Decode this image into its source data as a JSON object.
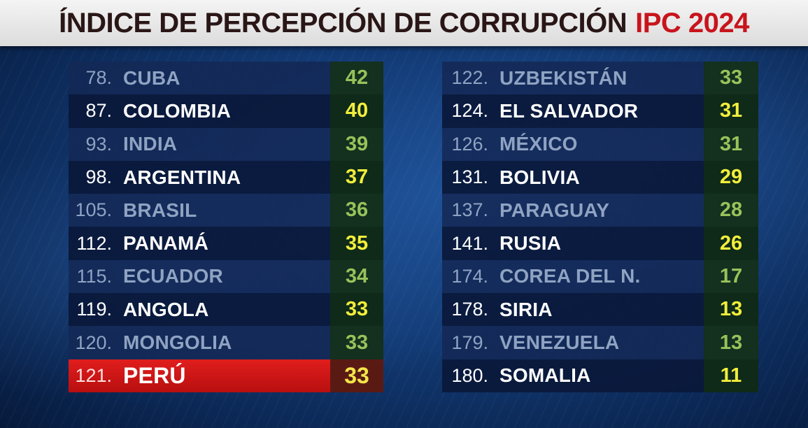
{
  "header": {
    "title_main": "ÍNDICE DE PERCEPCIÓN DE CORRUPCIÓN",
    "title_accent": "IPC 2024"
  },
  "colors": {
    "title_accent": "#c8141c",
    "highlight_row": "#e11d1d",
    "score_bright": "#f1ee3c",
    "score_dim": "#96c35a"
  },
  "left_table": [
    {
      "rank": "78.",
      "country": "CUBA",
      "score": "42",
      "style": "dim"
    },
    {
      "rank": "87.",
      "country": "COLOMBIA",
      "score": "40",
      "style": "bright"
    },
    {
      "rank": "93.",
      "country": "INDIA",
      "score": "39",
      "style": "dim"
    },
    {
      "rank": "98.",
      "country": "ARGENTINA",
      "score": "37",
      "style": "bright"
    },
    {
      "rank": "105.",
      "country": "BRASIL",
      "score": "36",
      "style": "dim"
    },
    {
      "rank": "112.",
      "country": "PANAMÁ",
      "score": "35",
      "style": "bright"
    },
    {
      "rank": "115.",
      "country": "ECUADOR",
      "score": "34",
      "style": "dim"
    },
    {
      "rank": "119.",
      "country": "ANGOLA",
      "score": "33",
      "style": "bright"
    },
    {
      "rank": "120.",
      "country": "MONGOLIA",
      "score": "33",
      "style": "dim"
    },
    {
      "rank": "121.",
      "country": "PERÚ",
      "score": "33",
      "style": "highlight"
    }
  ],
  "right_table": [
    {
      "rank": "122.",
      "country": "UZBEKISTÁN",
      "score": "33",
      "style": "dim"
    },
    {
      "rank": "124.",
      "country": "EL SALVADOR",
      "score": "31",
      "style": "bright"
    },
    {
      "rank": "126.",
      "country": "MÉXICO",
      "score": "31",
      "style": "dim"
    },
    {
      "rank": "131.",
      "country": "BOLIVIA",
      "score": "29",
      "style": "bright"
    },
    {
      "rank": "137.",
      "country": "PARAGUAY",
      "score": "28",
      "style": "dim"
    },
    {
      "rank": "141.",
      "country": "RUSIA",
      "score": "26",
      "style": "bright"
    },
    {
      "rank": "174.",
      "country": "COREA DEL N.",
      "score": "17",
      "style": "dim"
    },
    {
      "rank": "178.",
      "country": "SIRIA",
      "score": "13",
      "style": "bright"
    },
    {
      "rank": "179.",
      "country": "VENEZUELA",
      "score": "13",
      "style": "dim"
    },
    {
      "rank": "180.",
      "country": "SOMALIA",
      "score": "11",
      "style": "bright"
    }
  ]
}
